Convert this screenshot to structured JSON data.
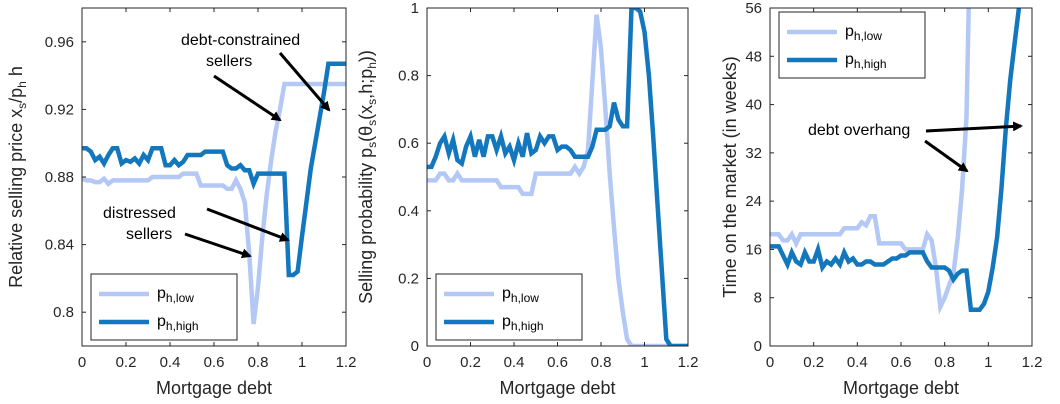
{
  "colors": {
    "low": "#b3c8f5",
    "high": "#1277bd",
    "axis": "#262626"
  },
  "chart_data": [
    {
      "type": "line",
      "xlabel": "Mortgage debt",
      "ylabel": "Relative selling price x_s/p_h h",
      "ylabel_parts": [
        "Relative selling price x",
        "s",
        "/p",
        "h",
        " h"
      ],
      "xlim": [
        0,
        1.2
      ],
      "ylim": [
        0.78,
        0.98
      ],
      "xticks": [
        "0",
        "0.2",
        "0.4",
        "0.6",
        "0.8",
        "1",
        "1.2"
      ],
      "yticks": [
        "0.8",
        "0.84",
        "0.88",
        "0.92",
        "0.96"
      ],
      "legend": {
        "position": "bottom-left"
      },
      "annotations": [
        {
          "lines": [
            "debt-constrained",
            "sellers"
          ]
        },
        {
          "lines": [
            "distressed",
            "sellers"
          ]
        }
      ],
      "series": [
        {
          "name": "p_h,low",
          "name_parts": [
            "p",
            "h,low"
          ],
          "color_key": "low",
          "x": [
            0,
            0.02,
            0.04,
            0.06,
            0.08,
            0.1,
            0.12,
            0.14,
            0.16,
            0.18,
            0.2,
            0.22,
            0.24,
            0.26,
            0.28,
            0.3,
            0.32,
            0.34,
            0.36,
            0.38,
            0.4,
            0.42,
            0.44,
            0.46,
            0.48,
            0.5,
            0.52,
            0.54,
            0.56,
            0.58,
            0.6,
            0.62,
            0.64,
            0.66,
            0.68,
            0.7,
            0.72,
            0.74,
            0.76,
            0.78,
            0.8,
            0.82,
            0.84,
            0.86,
            0.88,
            0.9,
            0.92,
            0.94,
            1.2
          ],
          "y": [
            0.879,
            0.878,
            0.878,
            0.877,
            0.877,
            0.879,
            0.876,
            0.878,
            0.878,
            0.878,
            0.878,
            0.878,
            0.878,
            0.878,
            0.878,
            0.878,
            0.88,
            0.88,
            0.88,
            0.88,
            0.88,
            0.88,
            0.88,
            0.882,
            0.882,
            0.882,
            0.882,
            0.875,
            0.875,
            0.875,
            0.875,
            0.875,
            0.875,
            0.873,
            0.873,
            0.878,
            0.873,
            0.865,
            0.835,
            0.793,
            0.815,
            0.845,
            0.87,
            0.89,
            0.907,
            0.92,
            0.935,
            0.935,
            0.935
          ]
        },
        {
          "name": "p_h,high",
          "name_parts": [
            "p",
            "h,high"
          ],
          "color_key": "high",
          "x": [
            0,
            0.02,
            0.04,
            0.06,
            0.08,
            0.1,
            0.12,
            0.14,
            0.16,
            0.18,
            0.2,
            0.22,
            0.24,
            0.26,
            0.28,
            0.3,
            0.32,
            0.34,
            0.36,
            0.38,
            0.4,
            0.42,
            0.44,
            0.46,
            0.48,
            0.5,
            0.52,
            0.54,
            0.56,
            0.58,
            0.6,
            0.62,
            0.64,
            0.66,
            0.68,
            0.7,
            0.72,
            0.74,
            0.76,
            0.78,
            0.8,
            0.82,
            0.84,
            0.86,
            0.88,
            0.9,
            0.92,
            0.94,
            0.96,
            0.98,
            1.0,
            1.02,
            1.04,
            1.06,
            1.08,
            1.1,
            1.12,
            1.14,
            1.16,
            1.18,
            1.2
          ],
          "y": [
            0.897,
            0.897,
            0.895,
            0.89,
            0.892,
            0.888,
            0.893,
            0.897,
            0.897,
            0.888,
            0.89,
            0.889,
            0.891,
            0.888,
            0.893,
            0.89,
            0.897,
            0.897,
            0.897,
            0.887,
            0.887,
            0.89,
            0.887,
            0.889,
            0.893,
            0.893,
            0.893,
            0.893,
            0.895,
            0.895,
            0.895,
            0.895,
            0.895,
            0.887,
            0.885,
            0.885,
            0.887,
            0.884,
            0.884,
            0.876,
            0.882,
            0.882,
            0.882,
            0.882,
            0.882,
            0.882,
            0.882,
            0.822,
            0.822,
            0.824,
            0.845,
            0.865,
            0.885,
            0.9,
            0.915,
            0.93,
            0.947,
            0.947,
            0.947,
            0.947,
            0.947
          ]
        }
      ]
    },
    {
      "type": "line",
      "xlabel": "Mortgage debt",
      "ylabel": "Selling probability p_s(θ_s(x_s,h;p_h))",
      "ylabel_parts": [
        "Selling probability p",
        "s",
        "(θ",
        "s",
        "(x",
        "s",
        ",h;p",
        "h",
        "))"
      ],
      "xlim": [
        0,
        1.2
      ],
      "ylim": [
        0,
        1
      ],
      "xticks": [
        "0",
        "0.2",
        "0.4",
        "0.6",
        "0.8",
        "1",
        "1.2"
      ],
      "yticks": [
        "0",
        "0.2",
        "0.4",
        "0.6",
        "0.8",
        "1"
      ],
      "legend": {
        "position": "bottom-left"
      },
      "series": [
        {
          "name": "p_h,low",
          "name_parts": [
            "p",
            "h,low"
          ],
          "color_key": "low",
          "x": [
            0,
            0.04,
            0.06,
            0.08,
            0.1,
            0.12,
            0.14,
            0.16,
            0.18,
            0.2,
            0.3,
            0.32,
            0.34,
            0.36,
            0.4,
            0.42,
            0.44,
            0.46,
            0.48,
            0.5,
            0.52,
            0.54,
            0.56,
            0.58,
            0.6,
            0.62,
            0.64,
            0.66,
            0.68,
            0.7,
            0.72,
            0.74,
            0.76,
            0.78,
            0.8,
            0.82,
            0.84,
            0.86,
            0.88,
            0.9,
            0.92,
            0.94,
            1.2
          ],
          "y": [
            0.49,
            0.49,
            0.51,
            0.51,
            0.49,
            0.49,
            0.51,
            0.49,
            0.49,
            0.49,
            0.49,
            0.49,
            0.47,
            0.47,
            0.47,
            0.47,
            0.45,
            0.45,
            0.45,
            0.51,
            0.51,
            0.51,
            0.51,
            0.51,
            0.51,
            0.51,
            0.51,
            0.51,
            0.53,
            0.51,
            0.53,
            0.58,
            0.78,
            0.98,
            0.88,
            0.7,
            0.51,
            0.35,
            0.2,
            0.1,
            0.02,
            0,
            0
          ]
        },
        {
          "name": "p_h,high",
          "name_parts": [
            "p",
            "h,high"
          ],
          "color_key": "high",
          "x": [
            0,
            0.02,
            0.04,
            0.06,
            0.08,
            0.1,
            0.12,
            0.14,
            0.16,
            0.18,
            0.2,
            0.22,
            0.24,
            0.26,
            0.28,
            0.3,
            0.32,
            0.34,
            0.36,
            0.38,
            0.4,
            0.42,
            0.44,
            0.46,
            0.48,
            0.5,
            0.52,
            0.54,
            0.56,
            0.58,
            0.6,
            0.62,
            0.64,
            0.66,
            0.68,
            0.7,
            0.72,
            0.74,
            0.76,
            0.78,
            0.8,
            0.82,
            0.84,
            0.86,
            0.88,
            0.9,
            0.92,
            0.94,
            0.96,
            0.98,
            1.0,
            1.02,
            1.04,
            1.06,
            1.08,
            1.1,
            1.12,
            1.14,
            1.16,
            1.18,
            1.2
          ],
          "y": [
            0.53,
            0.53,
            0.56,
            0.6,
            0.62,
            0.57,
            0.61,
            0.55,
            0.54,
            0.59,
            0.62,
            0.56,
            0.61,
            0.56,
            0.62,
            0.62,
            0.58,
            0.62,
            0.57,
            0.59,
            0.55,
            0.6,
            0.56,
            0.63,
            0.57,
            0.58,
            0.62,
            0.6,
            0.62,
            0.62,
            0.58,
            0.59,
            0.59,
            0.58,
            0.56,
            0.56,
            0.56,
            0.56,
            0.59,
            0.64,
            0.64,
            0.64,
            0.65,
            0.72,
            0.67,
            0.65,
            0.65,
            1.0,
            1.0,
            0.99,
            0.93,
            0.8,
            0.62,
            0.42,
            0.22,
            0.02,
            0,
            0,
            0,
            0,
            0
          ]
        }
      ]
    },
    {
      "type": "line",
      "xlabel": "Mortgage debt",
      "ylabel": "Time on the market (in weeks)",
      "xlim": [
        0,
        1.2
      ],
      "ylim": [
        0,
        56
      ],
      "xticks": [
        "0",
        "0.2",
        "0.4",
        "0.6",
        "0.8",
        "1",
        "1.2"
      ],
      "yticks": [
        "0",
        "8",
        "16",
        "24",
        "32",
        "40",
        "48",
        "56"
      ],
      "legend": {
        "position": "top-left"
      },
      "annotations": [
        {
          "lines": [
            "debt overhang"
          ]
        }
      ],
      "series": [
        {
          "name": "p_h,low",
          "name_parts": [
            "p",
            "h,low"
          ],
          "color_key": "low",
          "x": [
            0,
            0.02,
            0.04,
            0.06,
            0.08,
            0.1,
            0.12,
            0.14,
            0.16,
            0.18,
            0.2,
            0.22,
            0.24,
            0.26,
            0.28,
            0.3,
            0.32,
            0.34,
            0.36,
            0.38,
            0.4,
            0.42,
            0.44,
            0.46,
            0.48,
            0.5,
            0.52,
            0.54,
            0.56,
            0.58,
            0.6,
            0.62,
            0.64,
            0.66,
            0.68,
            0.7,
            0.72,
            0.74,
            0.76,
            0.78,
            0.8,
            0.82,
            0.84,
            0.86,
            0.88,
            0.9,
            0.91
          ],
          "y": [
            18.5,
            18.5,
            18.5,
            17.5,
            17.5,
            18.5,
            17,
            18.5,
            18.5,
            18.5,
            18.5,
            18.5,
            18.5,
            18.5,
            18.5,
            18.5,
            18.5,
            19.5,
            19.5,
            19.5,
            19.5,
            20.5,
            20,
            21.5,
            21.5,
            17,
            17,
            17,
            17,
            17,
            17,
            16,
            16,
            16,
            16,
            16,
            18.5,
            17.5,
            13,
            6.5,
            8,
            10,
            12,
            18,
            26,
            38,
            56
          ]
        },
        {
          "name": "p_h,high",
          "name_parts": [
            "p",
            "h,high"
          ],
          "color_key": "high",
          "x": [
            0,
            0.02,
            0.04,
            0.06,
            0.08,
            0.1,
            0.12,
            0.14,
            0.16,
            0.18,
            0.2,
            0.22,
            0.24,
            0.26,
            0.28,
            0.3,
            0.32,
            0.34,
            0.36,
            0.38,
            0.4,
            0.42,
            0.44,
            0.46,
            0.48,
            0.5,
            0.52,
            0.54,
            0.56,
            0.58,
            0.6,
            0.62,
            0.64,
            0.66,
            0.68,
            0.7,
            0.72,
            0.74,
            0.76,
            0.78,
            0.8,
            0.82,
            0.84,
            0.86,
            0.88,
            0.9,
            0.92,
            0.94,
            0.96,
            0.98,
            1.0,
            1.02,
            1.04,
            1.06,
            1.08,
            1.1,
            1.12,
            1.14
          ],
          "y": [
            16.5,
            16.5,
            16.5,
            15,
            13.5,
            15.5,
            14,
            13.5,
            15.5,
            14,
            14,
            16,
            13,
            14,
            13.5,
            14.5,
            13.5,
            15.5,
            14,
            14.5,
            13.5,
            13.5,
            14,
            14,
            13.5,
            13.5,
            13.5,
            14,
            14.5,
            14.5,
            15,
            15,
            15.5,
            15.5,
            15.5,
            15.5,
            14,
            13,
            13,
            13,
            13,
            12.5,
            11,
            12,
            12.5,
            12.5,
            6,
            6,
            6,
            7,
            9,
            13,
            18,
            26,
            36,
            44,
            50,
            56
          ]
        }
      ]
    }
  ]
}
